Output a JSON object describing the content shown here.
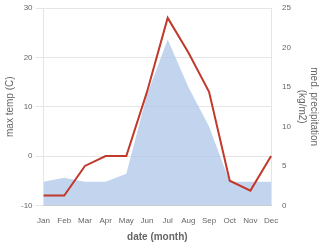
{
  "chart_data": {
    "type": "line",
    "categories": [
      "Jan",
      "Feb",
      "Mar",
      "Apr",
      "May",
      "Jun",
      "Jul",
      "Aug",
      "Sep",
      "Oct",
      "Nov",
      "Dec"
    ],
    "x_label": "date (month)",
    "y_label": "max temp (C)",
    "y2_label": "med. precipitation\n(kg/m2)",
    "series": [
      {
        "type": "area",
        "axis": "y2",
        "color": "#aec6e8",
        "values": [
          3,
          3.5,
          3,
          3,
          4,
          14,
          21,
          15,
          10,
          3,
          3,
          3
        ]
      },
      {
        "type": "line",
        "color": "#c0392b",
        "values": [
          -8,
          -8,
          -2,
          0,
          0,
          13,
          28,
          21,
          13,
          -5,
          -7,
          0
        ]
      }
    ],
    "ylim": [
      -10,
      30
    ],
    "yticks": [
      -10,
      0,
      10,
      20,
      30
    ],
    "y2lim": [
      0,
      25
    ],
    "y2ticks": [
      0,
      5,
      10,
      15,
      20,
      25
    ],
    "grid": "y"
  }
}
